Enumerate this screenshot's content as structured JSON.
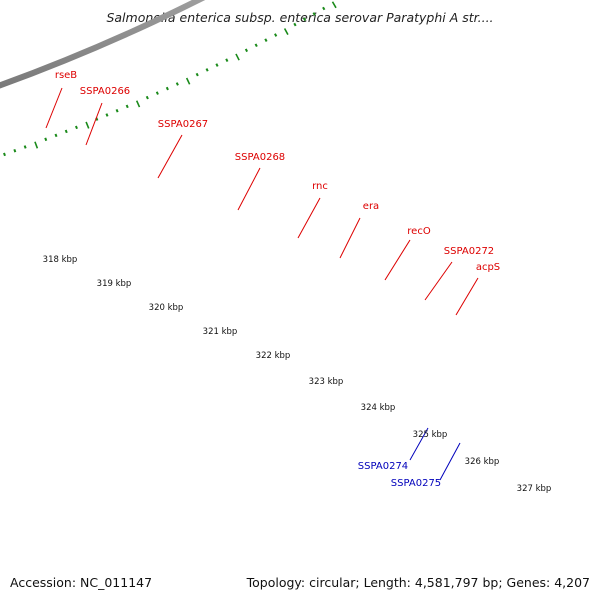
{
  "title": "Salmonella enterica subsp. enterica serovar Paratyphi A str....",
  "footer": {
    "accession": "Accession: NC_011147",
    "summary": "Topology: circular; Length: 4,581,797 bp; Genes: 4,207"
  },
  "colors": {
    "forward_gene_label": "#dd0000",
    "reverse_gene_label": "#0000bb",
    "backbone": "#8a8a8a",
    "tick": "#1a8a1a",
    "cds_red": "#ff0000",
    "gene_green": "#33cc33",
    "gene_olive": "#557a1e",
    "gene_lime": "#aaff44",
    "gene_orange": "#ff9900",
    "gene_grey": "#cccccc",
    "gene_magenta": "#ff33cc",
    "gene_blue": "#0000ee",
    "gene_violet": "#7a6ee0",
    "gene_cyan": "#33ffff"
  },
  "scale_labels": [
    "318 kbp",
    "319 kbp",
    "320 kbp",
    "321 kbp",
    "322 kbp",
    "323 kbp",
    "324 kbp",
    "325 kbp",
    "326 kbp",
    "327 kbp"
  ],
  "gene_labels": [
    {
      "name": "rseB",
      "strand": "forward"
    },
    {
      "name": "SSPA0266",
      "strand": "forward"
    },
    {
      "name": "SSPA0267",
      "strand": "forward"
    },
    {
      "name": "SSPA0268",
      "strand": "forward"
    },
    {
      "name": "rnc",
      "strand": "forward"
    },
    {
      "name": "era",
      "strand": "forward"
    },
    {
      "name": "recO",
      "strand": "forward"
    },
    {
      "name": "SSPA0272",
      "strand": "forward"
    },
    {
      "name": "acpS",
      "strand": "forward"
    },
    {
      "name": "SSPA0274",
      "strand": "reverse"
    },
    {
      "name": "SSPA0275",
      "strand": "reverse"
    }
  ]
}
